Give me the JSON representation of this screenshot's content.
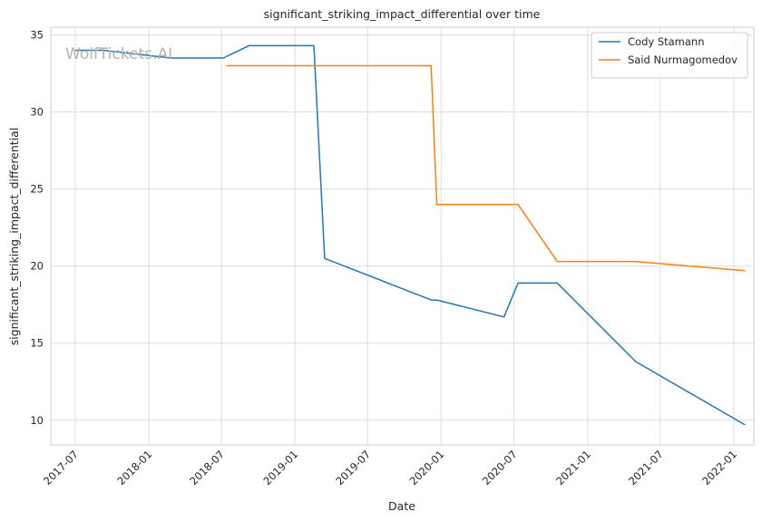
{
  "chart_data": {
    "type": "line",
    "title": "significant_striking_impact_differential over time",
    "xlabel": "Date",
    "ylabel": "significant_striking_impact_differential",
    "watermark": "WolfTickets.AI",
    "x_ticks": [
      "2017-07",
      "2018-01",
      "2018-07",
      "2019-01",
      "2019-07",
      "2020-01",
      "2020-07",
      "2021-01",
      "2021-07",
      "2022-01"
    ],
    "y_ticks": [
      10,
      15,
      20,
      25,
      30,
      35
    ],
    "xlim": [
      "2017-05-01",
      "2022-02-20"
    ],
    "ylim": [
      8.4,
      35.5
    ],
    "grid": true,
    "legend_position": "top-right",
    "series": [
      {
        "name": "Cody Stamann",
        "color": "#1f77b4",
        "points": [
          {
            "x": "2017-07-01",
            "y": 34.0
          },
          {
            "x": "2017-09-09",
            "y": 34.0
          },
          {
            "x": "2018-02-24",
            "y": 33.5
          },
          {
            "x": "2018-07-06",
            "y": 33.5
          },
          {
            "x": "2018-09-08",
            "y": 34.3
          },
          {
            "x": "2019-02-17",
            "y": 34.3
          },
          {
            "x": "2019-03-16",
            "y": 20.5
          },
          {
            "x": "2019-12-07",
            "y": 17.8
          },
          {
            "x": "2019-12-21",
            "y": 17.8
          },
          {
            "x": "2020-06-06",
            "y": 16.7
          },
          {
            "x": "2020-07-11",
            "y": 18.9
          },
          {
            "x": "2020-10-17",
            "y": 18.9
          },
          {
            "x": "2021-05-01",
            "y": 13.8
          },
          {
            "x": "2022-01-29",
            "y": 9.7
          }
        ]
      },
      {
        "name": "Said Nurmagomedov",
        "color": "#ff7f0e",
        "points": [
          {
            "x": "2018-07-14",
            "y": 33.0
          },
          {
            "x": "2019-12-07",
            "y": 33.0
          },
          {
            "x": "2019-12-21",
            "y": 24.0
          },
          {
            "x": "2020-07-11",
            "y": 24.0
          },
          {
            "x": "2020-10-17",
            "y": 20.3
          },
          {
            "x": "2021-05-01",
            "y": 20.3
          },
          {
            "x": "2022-01-29",
            "y": 19.7
          }
        ]
      }
    ]
  }
}
